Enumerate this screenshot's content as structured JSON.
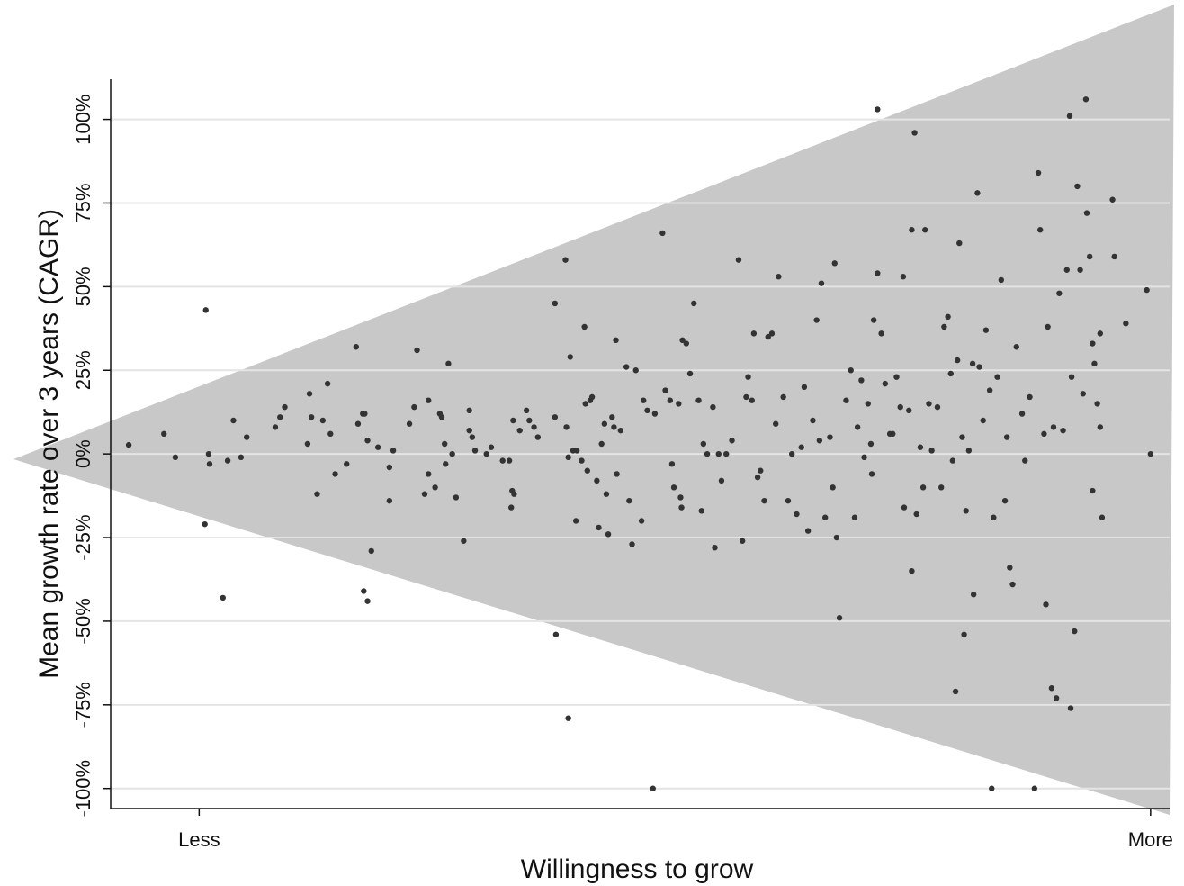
{
  "chart_data": {
    "type": "scatter",
    "x_label": "Willingness to grow",
    "y_label": "Mean growth rate over 3 years (CAGR)",
    "color": "#333333",
    "grid": true,
    "xlim": [
      -9.3,
      102
    ],
    "xticks": [
      {
        "value": 0,
        "label": "Less"
      },
      {
        "value": 100,
        "label": "More"
      }
    ],
    "ylim": [
      -106,
      112
    ],
    "yticks": [
      {
        "value": 100,
        "label": "100%"
      },
      {
        "value": 75,
        "label": "75%"
      },
      {
        "value": 50,
        "label": "50%"
      },
      {
        "value": 25,
        "label": "25%"
      },
      {
        "value": 0,
        "label": "0%"
      },
      {
        "value": -25,
        "label": "-25%"
      },
      {
        "value": -50,
        "label": "-50%"
      },
      {
        "value": -75,
        "label": "-75%"
      },
      {
        "value": -100,
        "label": "-100%"
      }
    ],
    "x": [
      -7.4,
      -3.7,
      -2.5,
      0.7,
      1,
      1.1,
      0.6,
      2.5,
      3,
      3.6,
      4.4,
      5,
      8,
      8.5,
      9,
      11.6,
      11.4,
      11.8,
      12.4,
      13,
      13.5,
      13.8,
      14.3,
      15.5,
      16.5,
      16.7,
      17.2,
      17.4,
      17.7,
      17.3,
      17.7,
      18.1,
      18.8,
      20,
      20,
      20.4,
      22.1,
      22.6,
      22.9,
      23.7,
      24.1,
      24.1,
      24.8,
      25.3,
      25.5,
      25.8,
      25.9,
      26.2,
      26.6,
      27,
      27.8,
      28.4,
      28.4,
      28.7,
      29,
      30.2,
      30.7,
      31.9,
      32.6,
      32.8,
      32.9,
      33.1,
      33,
      33.7,
      34.4,
      34.7,
      35.2,
      35.6,
      37.4,
      37.4,
      37.5,
      38.5,
      38.6,
      38.8,
      38.8,
      39,
      39.3,
      39.6,
      39.7,
      40.2,
      40.5,
      40.6,
      40.8,
      41.1,
      41.3,
      41.8,
      42,
      42.3,
      42.6,
      42.8,
      43,
      43.4,
      43.6,
      43.8,
      43.9,
      44.3,
      44.9,
      45.2,
      45.5,
      45.9,
      46.5,
      46.7,
      47.1,
      47.7,
      47.9,
      48.7,
      49,
      49.5,
      49.7,
      49.9,
      50.4,
      50.6,
      50.7,
      50.8,
      51.2,
      51.6,
      52,
      52.5,
      52.8,
      53,
      53.4,
      54,
      54.2,
      54.6,
      54.9,
      55.4,
      56,
      56.7,
      57.1,
      57.5,
      57.7,
      58.1,
      58.3,
      58.7,
      59,
      59.4,
      59.8,
      60.2,
      60.6,
      60.9,
      61.4,
      61.9,
      62.3,
      62.8,
      63.3,
      63.6,
      64,
      64.5,
      64.9,
      65.2,
      65.4,
      65.8,
      66.3,
      66.6,
      66.8,
      67,
      67.3,
      68,
      68.5,
      68.9,
      69.2,
      69.6,
      69.9,
      70.3,
      70.6,
      70.7,
      70.9,
      71.3,
      71.3,
      71.7,
      72.1,
      72.6,
      72.9,
      73.3,
      73.7,
      74,
      74.1,
      74.6,
      74.9,
      74.9,
      75.2,
      75.4,
      75.8,
      76.1,
      76.3,
      76.7,
      77,
      77.6,
      78,
      78.3,
      78.7,
      79,
      79.2,
      79.5,
      79.7,
      79.9,
      80.2,
      80.4,
      80.6,
      80.9,
      81.3,
      81.4,
      81.8,
      82,
      82.4,
      82.7,
      83.1,
      83.3,
      83.5,
      83.9,
      84.3,
      84.7,
      84.9,
      85.2,
      85.5,
      85.9,
      86.5,
      86.8,
      87.3,
      87.8,
      88.2,
      88.4,
      88.8,
      89,
      89.2,
      89.6,
      89.8,
      90.1,
      90.4,
      90.8,
      91.2,
      91.6,
      91.5,
      91.7,
      92,
      92.3,
      92.6,
      92.9,
      93.2,
      93.3,
      93.6,
      93.9,
      93.9,
      94.1,
      94.4,
      94.7,
      94.9,
      96,
      96.2,
      97.4,
      99.6,
      100,
      94.7
    ],
    "values": [
      2.7,
      6,
      -1,
      43,
      0,
      -3,
      -21,
      -43,
      -2,
      10,
      -1,
      5,
      8,
      11,
      14,
      18,
      3,
      11,
      -12,
      10,
      21,
      6,
      -6,
      -3,
      32,
      9,
      12,
      12,
      4,
      -41,
      -44,
      -29,
      2,
      -4,
      -14,
      1,
      9,
      14,
      31,
      -12,
      16,
      -6,
      -10,
      12,
      11,
      3,
      -3,
      27,
      0,
      -13,
      -26,
      13,
      7,
      5,
      1,
      0,
      2,
      -2,
      -2,
      -16,
      -11,
      -12,
      10,
      7,
      13,
      10,
      8,
      5,
      45,
      11,
      -54,
      58,
      8,
      -79,
      -1,
      29,
      1,
      -20,
      1,
      -2,
      38,
      15,
      -5,
      16,
      17,
      -8,
      -22,
      3,
      9,
      -12,
      -24,
      11,
      8,
      34,
      -6,
      7,
      26,
      -14,
      -27,
      25,
      -20,
      16,
      13,
      -100,
      12,
      66,
      19,
      16,
      -3,
      -10,
      15,
      -13,
      -16,
      34,
      33,
      24,
      45,
      16,
      -17,
      3,
      0,
      14,
      -28,
      0,
      -8,
      0,
      4,
      58,
      -26,
      17,
      23,
      16,
      36,
      -7,
      -5,
      -14,
      35,
      36,
      9,
      53,
      17,
      -14,
      0,
      -18,
      2,
      20,
      -23,
      10,
      40,
      4,
      51,
      -19,
      5,
      -10,
      57,
      -25,
      -49,
      16,
      25,
      -19,
      8,
      22,
      -1,
      15,
      3,
      -6,
      40,
      103,
      54,
      36,
      21,
      6,
      6,
      23,
      14,
      53,
      -16,
      13,
      -35,
      67,
      96,
      -18,
      2,
      -10,
      67,
      15,
      1,
      14,
      -10,
      38,
      41,
      24,
      -2,
      -71,
      28,
      63,
      5,
      -54,
      -17,
      1,
      27,
      -42,
      78,
      26,
      10,
      37,
      19,
      -100,
      -19,
      23,
      52,
      -14,
      5,
      -34,
      -39,
      32,
      12,
      -2,
      17,
      -100,
      84,
      67,
      6,
      -45,
      38,
      -70,
      8,
      -73,
      48,
      7,
      55,
      -76,
      101,
      23,
      -53,
      80,
      55,
      18,
      106,
      72,
      59,
      33,
      -11,
      27,
      15,
      36,
      -19,
      76,
      59,
      39,
      49,
      0,
      8
    ]
  }
}
